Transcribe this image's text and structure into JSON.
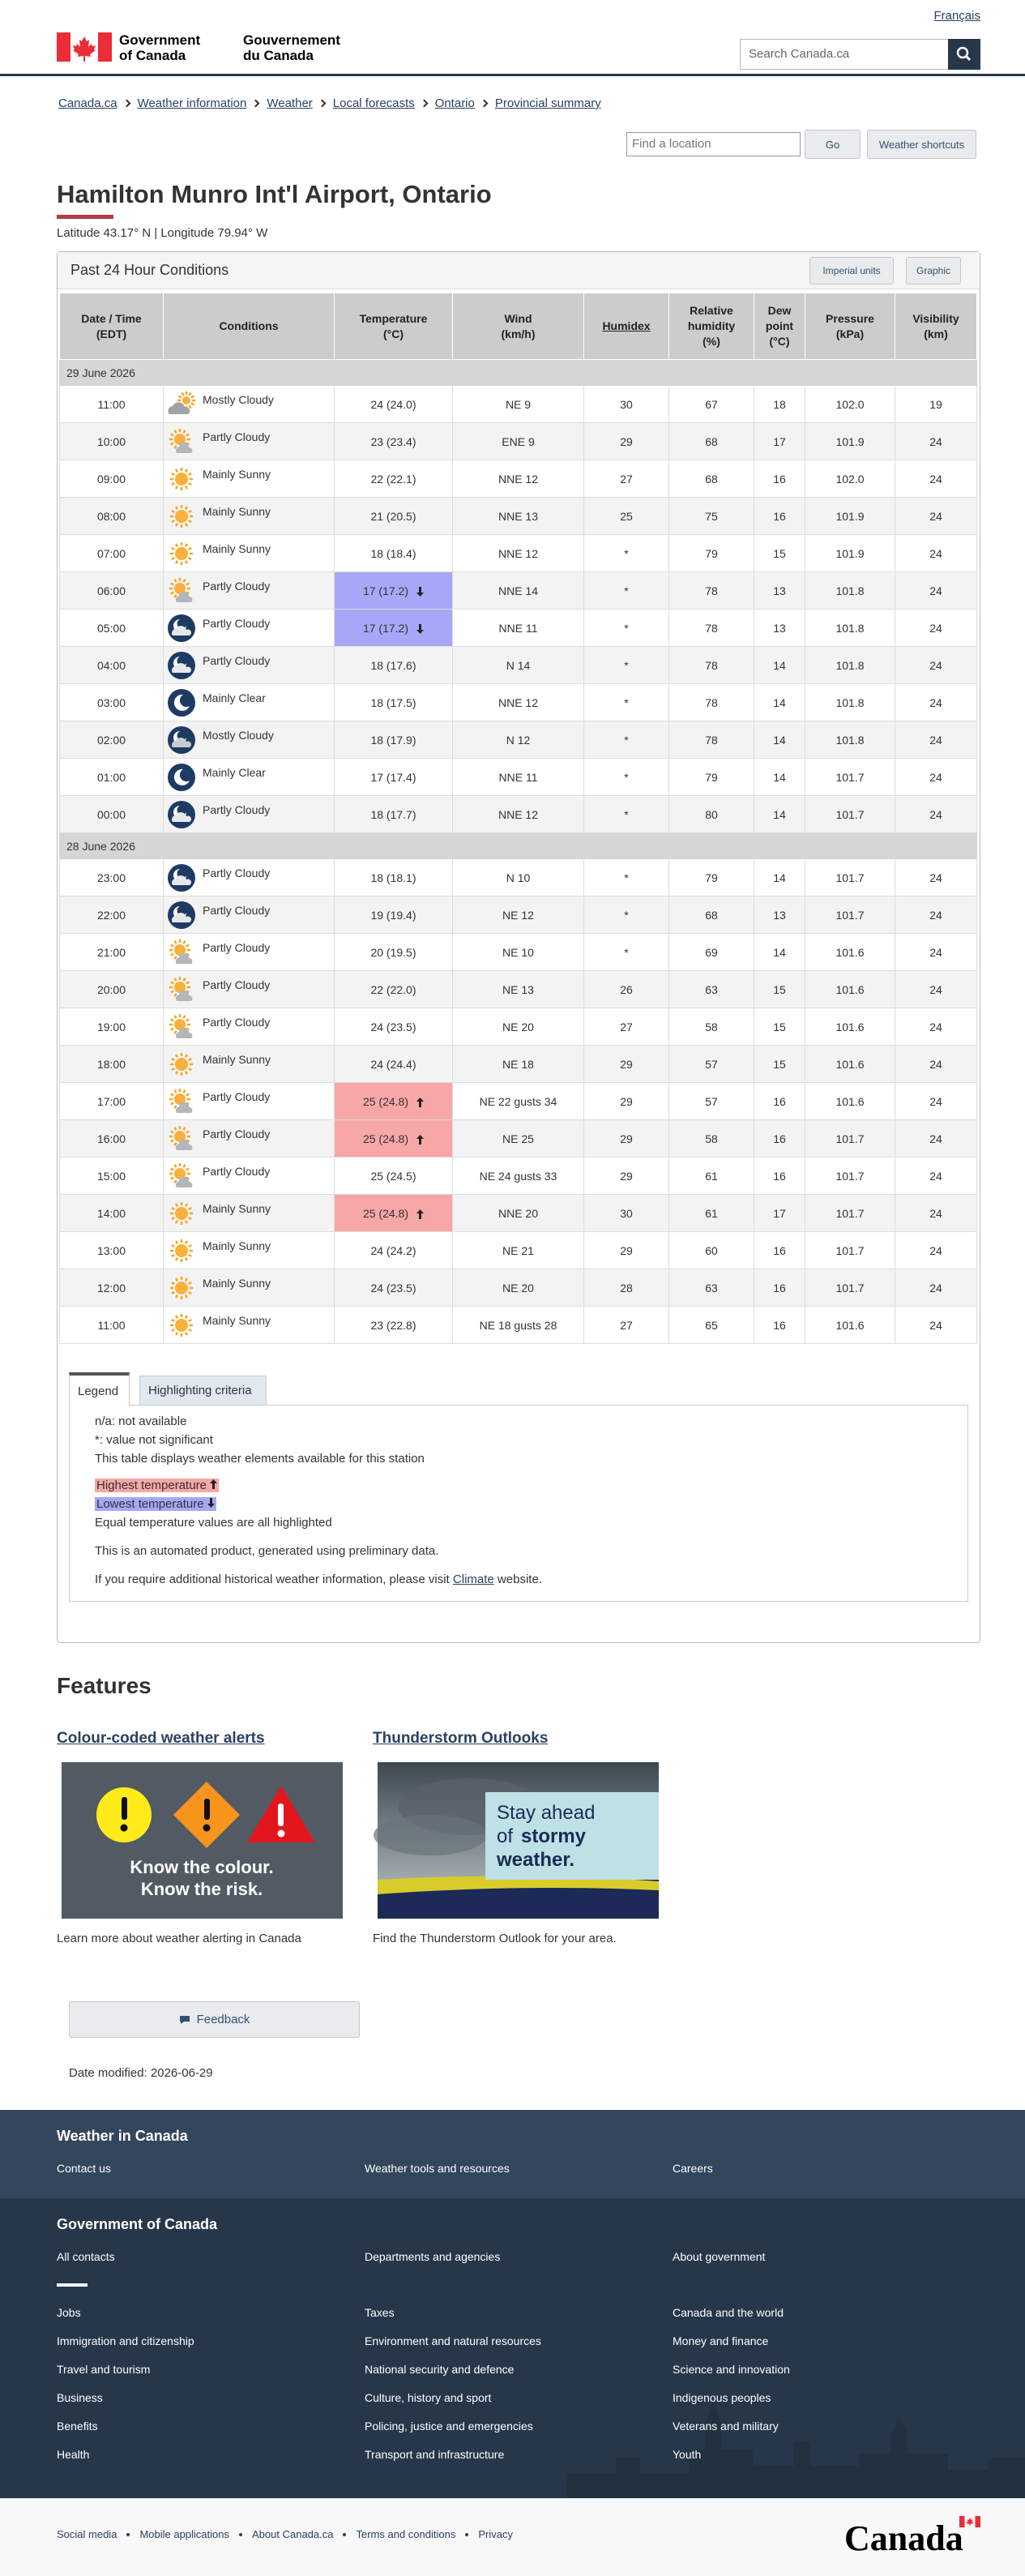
{
  "header": {
    "language_link": "Français",
    "gov_en_1": "Government",
    "gov_en_2": "of Canada",
    "gov_fr_1": "Gouvernement",
    "gov_fr_2": "du Canada",
    "search_placeholder": "Search Canada.ca"
  },
  "breadcrumb": [
    "Canada.ca",
    "Weather information",
    "Weather",
    "Local forecasts",
    "Ontario",
    "Provincial summary"
  ],
  "location_search": {
    "placeholder": "Find a location",
    "go": "Go",
    "shortcuts": "Weather shortcuts"
  },
  "title": "Hamilton Munro Int'l Airport, Ontario",
  "coordinates": "Latitude 43.17° N | Longitude 79.94° W",
  "panel": {
    "title": "Past 24 Hour Conditions",
    "buttons": [
      "Imperial units",
      "Graphic"
    ]
  },
  "table": {
    "headers": [
      [
        "Date / Time",
        "(EDT)"
      ],
      [
        "Conditions"
      ],
      [
        "Temperature",
        "(°C)"
      ],
      [
        "Wind",
        "(km/h)"
      ],
      [
        "Humidex"
      ],
      [
        "Relative",
        "humidity",
        "(%)"
      ],
      [
        "Dew",
        "point",
        "(°C)"
      ],
      [
        "Pressure",
        "(kPa)"
      ],
      [
        "Visibility",
        "(km)"
      ]
    ],
    "groups": [
      {
        "date": "29 June 2026",
        "rows": [
          [
            "11:00",
            "Mostly Cloudy",
            "24 (24.0)",
            "NE 9",
            "30",
            "67",
            "18",
            "102.0",
            "19"
          ],
          [
            "10:00",
            "Partly Cloudy",
            "23 (23.4)",
            "ENE 9",
            "29",
            "68",
            "17",
            "101.9",
            "24"
          ],
          [
            "09:00",
            "Mainly Sunny",
            "22 (22.1)",
            "NNE 12",
            "27",
            "68",
            "16",
            "102.0",
            "24"
          ],
          [
            "08:00",
            "Mainly Sunny",
            "21 (20.5)",
            "NNE 13",
            "25",
            "75",
            "16",
            "101.9",
            "24"
          ],
          [
            "07:00",
            "Mainly Sunny",
            "18 (18.4)",
            "NNE 12",
            "*",
            "79",
            "15",
            "101.9",
            "24"
          ],
          [
            "06:00",
            "Partly Cloudy",
            "17 (17.2)",
            "NNE 14",
            "*",
            "78",
            "13",
            "101.8",
            "24"
          ],
          [
            "05:00",
            "Partly Cloudy",
            "17 (17.2)",
            "NNE 11",
            "*",
            "78",
            "13",
            "101.8",
            "24"
          ],
          [
            "04:00",
            "Partly Cloudy",
            "18 (17.6)",
            "N 14",
            "*",
            "78",
            "14",
            "101.8",
            "24"
          ],
          [
            "03:00",
            "Mainly Clear",
            "18 (17.5)",
            "NNE 12",
            "*",
            "78",
            "14",
            "101.8",
            "24"
          ],
          [
            "02:00",
            "Mostly Cloudy",
            "18 (17.9)",
            "N 12",
            "*",
            "78",
            "14",
            "101.8",
            "24"
          ],
          [
            "01:00",
            "Mainly Clear",
            "17 (17.4)",
            "NNE 11",
            "*",
            "79",
            "14",
            "101.7",
            "24"
          ],
          [
            "00:00",
            "Partly Cloudy",
            "18 (17.7)",
            "NNE 12",
            "*",
            "80",
            "14",
            "101.7",
            "24"
          ]
        ]
      },
      {
        "date": "28 June 2026",
        "rows": [
          [
            "23:00",
            "Partly Cloudy",
            "18 (18.1)",
            "N 10",
            "*",
            "79",
            "14",
            "101.7",
            "24"
          ],
          [
            "22:00",
            "Partly Cloudy",
            "19 (19.4)",
            "NE 12",
            "*",
            "68",
            "13",
            "101.7",
            "24"
          ],
          [
            "21:00",
            "Partly Cloudy",
            "20 (19.5)",
            "NE 10",
            "*",
            "69",
            "14",
            "101.6",
            "24"
          ],
          [
            "20:00",
            "Partly Cloudy",
            "22 (22.0)",
            "NE 13",
            "26",
            "63",
            "15",
            "101.6",
            "24"
          ],
          [
            "19:00",
            "Partly Cloudy",
            "24 (23.5)",
            "NE 20",
            "27",
            "58",
            "15",
            "101.6",
            "24"
          ],
          [
            "18:00",
            "Mainly Sunny",
            "24 (24.4)",
            "NE 18",
            "29",
            "57",
            "15",
            "101.6",
            "24"
          ],
          [
            "17:00",
            "Partly Cloudy",
            "25 (24.8)",
            "NE 22 gusts 34",
            "29",
            "57",
            "16",
            "101.6",
            "24"
          ],
          [
            "16:00",
            "Partly Cloudy",
            "25 (24.8)",
            "NE 25",
            "29",
            "58",
            "16",
            "101.7",
            "24"
          ],
          [
            "15:00",
            "Partly Cloudy",
            "25 (24.5)",
            "NE 24 gusts 33",
            "29",
            "61",
            "16",
            "101.7",
            "24"
          ],
          [
            "14:00",
            "Mainly Sunny",
            "25 (24.8)",
            "NNE 20",
            "30",
            "61",
            "17",
            "101.7",
            "24"
          ],
          [
            "13:00",
            "Mainly Sunny",
            "24 (24.2)",
            "NE 21",
            "29",
            "60",
            "16",
            "101.7",
            "24"
          ],
          [
            "12:00",
            "Mainly Sunny",
            "24 (23.5)",
            "NE 20",
            "28",
            "63",
            "16",
            "101.7",
            "24"
          ],
          [
            "11:00",
            "Mainly Sunny",
            "23 (22.8)",
            "NE 18 gusts 28",
            "27",
            "65",
            "16",
            "101.6",
            "24"
          ]
        ]
      }
    ]
  },
  "legend": {
    "tabs": [
      "Legend",
      "Highlighting criteria"
    ],
    "lines": [
      "n/a: not available",
      "*: value not significant",
      "This table displays weather elements available for this station"
    ],
    "highest": "Highest temperature",
    "lowest": "Lowest temperature",
    "equal": "Equal temperature values are all highlighted",
    "automated": "This is an automated product, generated using preliminary data.",
    "historical_before": "If you require additional historical weather information, please visit ",
    "historical_link": "Climate",
    "historical_after": " website."
  },
  "features": {
    "title": "Features",
    "items": [
      {
        "title": "Colour-coded weather alerts",
        "image_text": [
          "Know the colour.",
          "Know the risk."
        ],
        "caption": "Learn more about weather alerting in Canada"
      },
      {
        "title": "Thunderstorm Outlooks",
        "image_text": [
          "Stay ahead",
          "of",
          "stormy",
          "weather."
        ],
        "caption": "Find the Thunderstorm Outlook for your area."
      }
    ]
  },
  "feedback": "Feedback",
  "date_modified_label": "Date modified:",
  "date_modified": "2026-06-29",
  "footer": {
    "weather_title": "Weather in Canada",
    "weather_links": [
      "Contact us",
      "Weather tools and resources",
      "Careers"
    ],
    "gov_title": "Government of Canada",
    "gov_links_top": [
      "All contacts",
      "Departments and agencies",
      "About government"
    ],
    "gov_links": [
      "Jobs",
      "Taxes",
      "Canada and the world",
      "Immigration and citizenship",
      "Environment and natural resources",
      "Money and finance",
      "Travel and tourism",
      "National security and defence",
      "Science and innovation",
      "Business",
      "Culture, history and sport",
      "Indigenous peoples",
      "Benefits",
      "Policing, justice and emergencies",
      "Veterans and military",
      "Health",
      "Transport and infrastructure",
      "Youth"
    ]
  },
  "bottom": {
    "links": [
      "Social media",
      "Mobile applications",
      "About Canada.ca",
      "Terms and conditions",
      "Privacy"
    ],
    "wordmark": "Canada"
  }
}
